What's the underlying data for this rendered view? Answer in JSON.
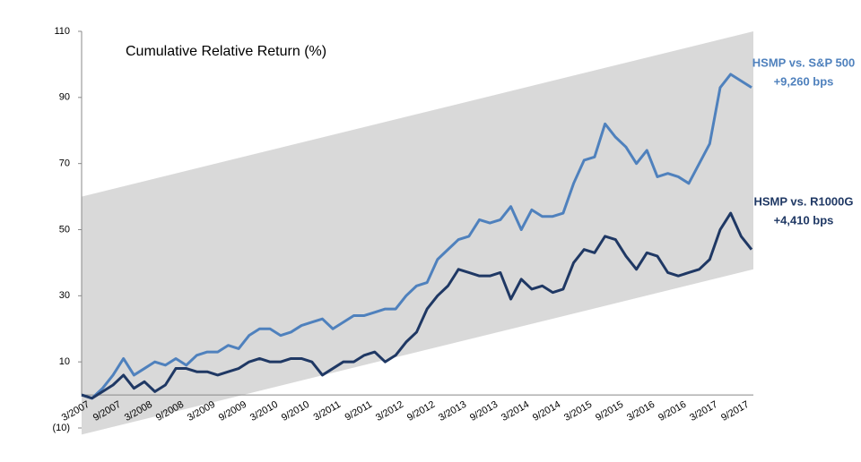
{
  "chart_data": {
    "type": "line",
    "title": "Cumulative Relative Return (%)",
    "categories": [
      "3/2007",
      null,
      null,
      "9/2007",
      null,
      null,
      "3/2008",
      null,
      null,
      "9/2008",
      null,
      null,
      "3/2009",
      null,
      null,
      "9/2009",
      null,
      null,
      "3/2010",
      null,
      null,
      "9/2010",
      null,
      null,
      "3/2011",
      null,
      null,
      "9/2011",
      null,
      null,
      "3/2012",
      null,
      null,
      "9/2012",
      null,
      null,
      "3/2013",
      null,
      null,
      "9/2013",
      null,
      null,
      "3/2014",
      null,
      null,
      "9/2014",
      null,
      null,
      "3/2015",
      null,
      null,
      "9/2015",
      null,
      null,
      "3/2016",
      null,
      null,
      "9/2016",
      null,
      null,
      "3/2017",
      null,
      null,
      "9/2017",
      null
    ],
    "series": [
      {
        "name": "HSMP vs. S&P 500",
        "label": "+9,260 bps",
        "color": "#4f81bd",
        "values": [
          0,
          -1,
          2,
          6,
          11,
          6,
          8,
          10,
          9,
          11,
          9,
          12,
          13,
          13,
          15,
          14,
          18,
          20,
          20,
          18,
          19,
          21,
          22,
          23,
          20,
          22,
          24,
          24,
          25,
          26,
          26,
          30,
          33,
          34,
          41,
          44,
          47,
          48,
          53,
          52,
          53,
          57,
          50,
          56,
          54,
          54,
          55,
          64,
          71,
          72,
          82,
          78,
          75,
          70,
          74,
          66,
          67,
          66,
          64,
          70,
          76,
          93,
          97,
          95,
          93
        ]
      },
      {
        "name": "HSMP vs. R1000G",
        "label": "+4,410 bps",
        "color": "#1f3864",
        "values": [
          0,
          -1,
          1,
          3,
          6,
          2,
          4,
          1,
          3,
          8,
          8,
          7,
          7,
          6,
          7,
          8,
          10,
          11,
          10,
          10,
          11,
          11,
          10,
          6,
          8,
          10,
          10,
          12,
          13,
          10,
          12,
          16,
          19,
          26,
          30,
          33,
          38,
          37,
          36,
          36,
          37,
          29,
          35,
          32,
          33,
          31,
          32,
          40,
          44,
          43,
          48,
          47,
          42,
          38,
          43,
          42,
          37,
          36,
          37,
          38,
          41,
          50,
          55,
          48,
          44
        ]
      }
    ],
    "band_upper": [
      60,
      110
    ],
    "band_lower": [
      -12,
      38
    ],
    "band_color": "#d9d9d9",
    "ylim": [
      -10,
      110
    ],
    "yticks": [
      {
        "value": -10,
        "label": "(10)"
      },
      10,
      30,
      50,
      70,
      90,
      110
    ],
    "grid": false
  }
}
